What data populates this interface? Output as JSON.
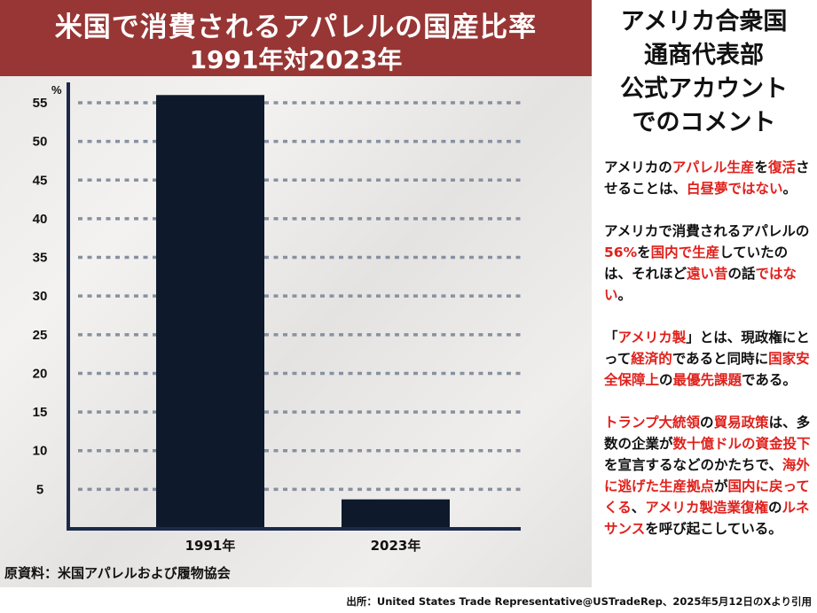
{
  "title": {
    "main": "米国で消費されるアパレルの国産比率",
    "sub": "1991年対2023年"
  },
  "chart_data": {
    "type": "bar",
    "categories": [
      "1991年",
      "2023年"
    ],
    "values": [
      56,
      3.7
    ],
    "ylabel": "%",
    "ylim": [
      0,
      57
    ],
    "yticks": [
      5,
      10,
      15,
      20,
      25,
      30,
      35,
      40,
      45,
      50,
      55
    ],
    "grid": true,
    "bar_color": "#0e1a2c",
    "grid_color": "#8891a1"
  },
  "source_left": "原資料：米国アパレルおよび履物協会",
  "right_panel": {
    "heading_lines": [
      "アメリカ合衆国",
      "通商代表部",
      "公式アカウント",
      "でのコメント"
    ],
    "paragraphs": [
      [
        {
          "t": "アメリカの",
          "h": false
        },
        {
          "t": "アパレル生産",
          "h": true
        },
        {
          "t": "を",
          "h": false
        },
        {
          "t": "復活",
          "h": true
        },
        {
          "t": "させることは、",
          "h": false
        },
        {
          "t": "白昼夢ではない",
          "h": true
        },
        {
          "t": "。",
          "h": false
        }
      ],
      [
        {
          "t": "アメリカで消費されるアパレルの",
          "h": false
        },
        {
          "t": "56%",
          "h": true
        },
        {
          "t": "を",
          "h": false
        },
        {
          "t": "国内で生産",
          "h": true
        },
        {
          "t": "していたのは、それほど",
          "h": false
        },
        {
          "t": "遠い昔",
          "h": true
        },
        {
          "t": "の話",
          "h": false
        },
        {
          "t": "ではない",
          "h": true
        },
        {
          "t": "。",
          "h": false
        }
      ],
      [
        {
          "t": "「",
          "h": false
        },
        {
          "t": "アメリカ製",
          "h": true
        },
        {
          "t": "」とは、現政権にとって",
          "h": false
        },
        {
          "t": "経済的",
          "h": true
        },
        {
          "t": "であると同時に",
          "h": false
        },
        {
          "t": "国家安全保障上",
          "h": true
        },
        {
          "t": "の",
          "h": false
        },
        {
          "t": "最優先課題",
          "h": true
        },
        {
          "t": "である。",
          "h": false
        }
      ],
      [
        {
          "t": "トランプ大統領",
          "h": true
        },
        {
          "t": "の",
          "h": false
        },
        {
          "t": "貿易政策",
          "h": true
        },
        {
          "t": "は、多数の企業が",
          "h": false
        },
        {
          "t": "数十億ドルの資金投下",
          "h": true
        },
        {
          "t": "を宣言するなどのかたちで、",
          "h": false
        },
        {
          "t": "海外に逃げた生産拠点",
          "h": true
        },
        {
          "t": "が",
          "h": false
        },
        {
          "t": "国内に戻ってくる",
          "h": true
        },
        {
          "t": "、",
          "h": false
        },
        {
          "t": "アメリカ製造業復権",
          "h": true
        },
        {
          "t": "の",
          "h": false
        },
        {
          "t": "ルネサンス",
          "h": true
        },
        {
          "t": "を呼び起こしている。",
          "h": false
        }
      ]
    ]
  },
  "source_footer": "出所：United States Trade Representative@USTradeRep、2025年5月12日のXより引用"
}
